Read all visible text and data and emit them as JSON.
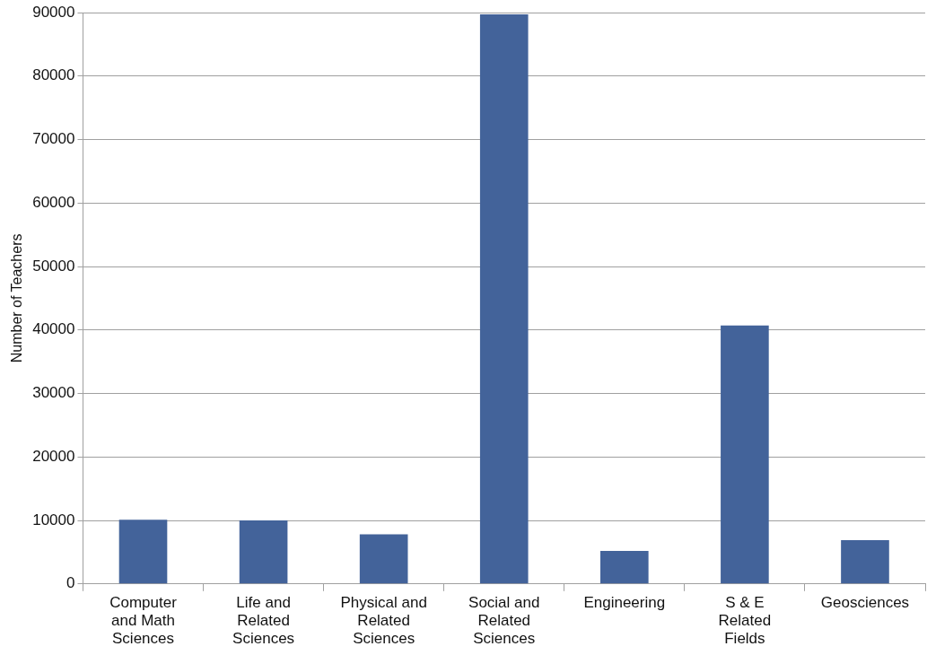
{
  "chart_data": {
    "type": "bar",
    "ylabel": "Number of Teachers",
    "categories": [
      "Computer and Math Sciences",
      "Life and Related Sciences",
      "Physical and Related Sciences",
      "Social and Related Sciences",
      "Engineering",
      "S & E Related Fields",
      "Geosciences"
    ],
    "values": [
      10100,
      10000,
      7800,
      89700,
      5200,
      40700,
      6900
    ],
    "color": "#43639a",
    "ylim": [
      0,
      90000
    ],
    "yticks": [
      0,
      10000,
      20000,
      30000,
      40000,
      50000,
      60000,
      70000,
      80000,
      90000
    ],
    "grid": "y",
    "legend": false
  }
}
